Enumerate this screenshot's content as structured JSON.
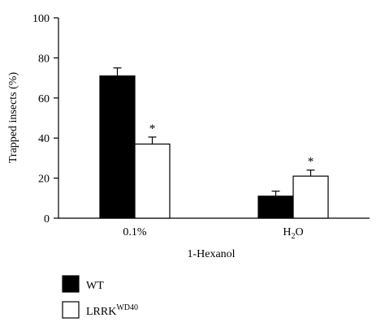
{
  "chart_data": {
    "type": "bar",
    "ylabel": "Trapped insects (%)",
    "xlabel": "1-Hexanol",
    "ylim": [
      0,
      100
    ],
    "yticks": [
      "0",
      "20",
      "40",
      "60",
      "80",
      "100"
    ],
    "categories": [
      {
        "label": "0.1%",
        "base": "0.1%",
        "sub": ""
      },
      {
        "label": "H2O",
        "base": "H",
        "sub": "2",
        "tail": "O"
      }
    ],
    "series": [
      {
        "name": "WT",
        "sup": "",
        "color": "#000000",
        "values": [
          71,
          11
        ],
        "errors": [
          4,
          2.5
        ]
      },
      {
        "name": "LRRK",
        "sup": "WD40",
        "color": "#ffffff",
        "values": [
          37,
          21
        ],
        "errors": [
          3.5,
          3
        ]
      }
    ],
    "significance": [
      {
        "series": 1,
        "category": 0,
        "mark": "*"
      },
      {
        "series": 1,
        "category": 1,
        "mark": "*"
      }
    ],
    "legend_position": "bottom-left",
    "grid": false
  }
}
